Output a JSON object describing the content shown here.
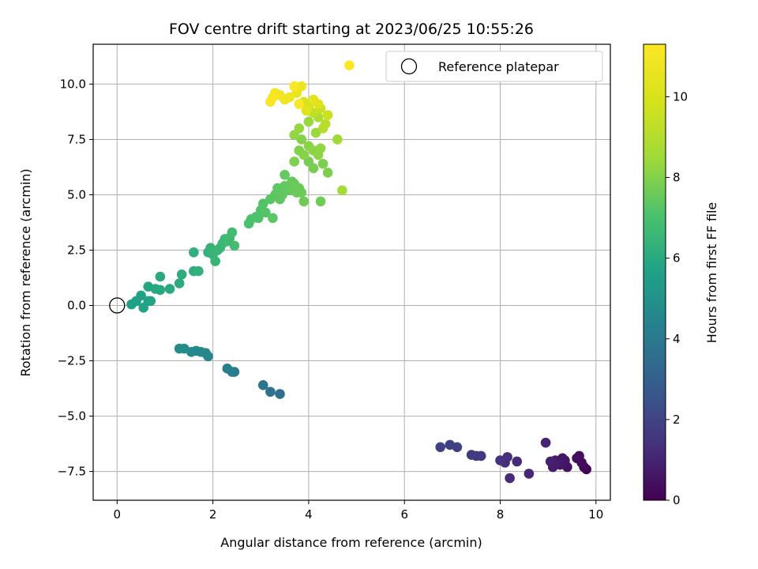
{
  "chart_data": {
    "type": "scatter",
    "title": "FOV centre drift starting at 2023/06/25 10:55:26",
    "xlabel": "Angular distance from reference (arcmin)",
    "ylabel": "Rotation from reference (arcmin)",
    "xlim": [
      -0.5,
      10.3
    ],
    "ylim": [
      -8.8,
      11.8
    ],
    "xticks": [
      0,
      2,
      4,
      6,
      8,
      10
    ],
    "yticks": [
      -7.5,
      -5.0,
      -2.5,
      0.0,
      2.5,
      5.0,
      7.5,
      10.0
    ],
    "grid": true,
    "legend": {
      "placement": "top-right",
      "entries": [
        "Reference platepar"
      ]
    },
    "reference_point": {
      "x": 0,
      "y": 0,
      "label": "Reference platepar"
    },
    "colorbar": {
      "label": "Hours from first FF file",
      "colormap": "viridis",
      "range": [
        0,
        11.3
      ],
      "ticks": [
        0,
        2,
        4,
        6,
        8,
        10
      ]
    },
    "points": [
      [
        9.8,
        -7.4,
        0.1
      ],
      [
        9.75,
        -7.3,
        0.2
      ],
      [
        9.7,
        -7.1,
        0.3
      ],
      [
        9.65,
        -6.8,
        0.35
      ],
      [
        9.6,
        -6.9,
        0.4
      ],
      [
        9.4,
        -7.3,
        0.5
      ],
      [
        9.35,
        -7.0,
        0.55
      ],
      [
        9.3,
        -6.9,
        0.6
      ],
      [
        9.25,
        -7.2,
        0.65
      ],
      [
        9.2,
        -7.1,
        0.7
      ],
      [
        9.15,
        -7.0,
        0.75
      ],
      [
        9.1,
        -7.3,
        0.8
      ],
      [
        9.05,
        -7.05,
        0.9
      ],
      [
        8.95,
        -6.2,
        1.0
      ],
      [
        8.6,
        -7.6,
        1.1
      ],
      [
        8.35,
        -7.05,
        1.2
      ],
      [
        8.2,
        -7.8,
        1.25
      ],
      [
        8.15,
        -6.85,
        1.3
      ],
      [
        8.1,
        -7.1,
        1.35
      ],
      [
        8.0,
        -7.0,
        1.4
      ],
      [
        7.6,
        -6.8,
        1.6
      ],
      [
        7.5,
        -6.8,
        1.65
      ],
      [
        7.4,
        -6.75,
        1.7
      ],
      [
        7.1,
        -6.4,
        1.8
      ],
      [
        6.95,
        -6.3,
        1.85
      ],
      [
        6.75,
        -6.4,
        1.9
      ],
      [
        3.4,
        -4.0,
        3.6
      ],
      [
        3.2,
        -3.9,
        3.7
      ],
      [
        3.05,
        -3.6,
        3.8
      ],
      [
        2.45,
        -3.0,
        4.1
      ],
      [
        2.4,
        -3.0,
        4.15
      ],
      [
        2.3,
        -2.85,
        4.2
      ],
      [
        1.9,
        -2.3,
        4.5
      ],
      [
        1.85,
        -2.15,
        4.55
      ],
      [
        1.75,
        -2.1,
        4.6
      ],
      [
        1.65,
        -2.05,
        4.65
      ],
      [
        1.55,
        -2.1,
        4.7
      ],
      [
        1.4,
        -1.95,
        4.75
      ],
      [
        1.3,
        -1.95,
        4.8
      ],
      [
        0.3,
        0.05,
        5.6
      ],
      [
        0.4,
        0.2,
        5.65
      ],
      [
        0.5,
        0.45,
        5.7
      ],
      [
        0.55,
        -0.1,
        5.72
      ],
      [
        0.65,
        0.2,
        5.75
      ],
      [
        0.7,
        0.2,
        5.8
      ],
      [
        0.65,
        0.85,
        5.85
      ],
      [
        0.8,
        0.75,
        5.9
      ],
      [
        0.9,
        0.7,
        5.95
      ],
      [
        0.9,
        1.3,
        6.0
      ],
      [
        1.1,
        0.75,
        6.05
      ],
      [
        1.3,
        1.0,
        6.1
      ],
      [
        1.35,
        1.4,
        6.15
      ],
      [
        1.6,
        1.55,
        6.2
      ],
      [
        1.6,
        2.4,
        6.25
      ],
      [
        1.7,
        1.55,
        6.3
      ],
      [
        1.9,
        2.4,
        6.35
      ],
      [
        1.95,
        2.6,
        6.4
      ],
      [
        2.0,
        2.3,
        6.45
      ],
      [
        2.05,
        2.0,
        6.5
      ],
      [
        2.1,
        2.5,
        6.52
      ],
      [
        2.15,
        2.6,
        6.55
      ],
      [
        2.2,
        2.8,
        6.6
      ],
      [
        2.25,
        3.0,
        6.65
      ],
      [
        2.3,
        2.9,
        6.7
      ],
      [
        2.35,
        3.05,
        6.75
      ],
      [
        2.4,
        3.3,
        6.8
      ],
      [
        2.45,
        2.7,
        6.85
      ],
      [
        2.75,
        3.7,
        7.0
      ],
      [
        2.8,
        3.9,
        7.05
      ],
      [
        2.9,
        4.0,
        7.1
      ],
      [
        2.95,
        3.95,
        7.12
      ],
      [
        3.0,
        4.3,
        7.15
      ],
      [
        3.05,
        4.6,
        7.2
      ],
      [
        3.1,
        4.2,
        7.25
      ],
      [
        3.2,
        4.8,
        7.3
      ],
      [
        3.25,
        3.95,
        7.32
      ],
      [
        3.3,
        5.0,
        7.35
      ],
      [
        3.35,
        5.3,
        7.38
      ],
      [
        3.4,
        4.8,
        7.4
      ],
      [
        3.45,
        5.0,
        7.42
      ],
      [
        3.5,
        5.4,
        7.45
      ],
      [
        3.5,
        5.9,
        7.48
      ],
      [
        3.6,
        5.2,
        7.5
      ],
      [
        3.65,
        5.6,
        7.52
      ],
      [
        3.7,
        5.5,
        7.55
      ],
      [
        3.75,
        5.1,
        7.58
      ],
      [
        3.8,
        5.3,
        7.6
      ],
      [
        3.85,
        5.1,
        7.62
      ],
      [
        3.9,
        4.7,
        7.65
      ],
      [
        4.25,
        4.7,
        7.7
      ],
      [
        4.0,
        6.5,
        7.75
      ],
      [
        4.1,
        6.2,
        7.8
      ],
      [
        4.3,
        6.4,
        7.85
      ],
      [
        4.4,
        6.0,
        7.9
      ],
      [
        3.7,
        6.5,
        7.92
      ],
      [
        3.8,
        7.0,
        7.95
      ],
      [
        3.85,
        7.5,
        8.0
      ],
      [
        3.9,
        6.8,
        8.05
      ],
      [
        4.0,
        7.2,
        8.1
      ],
      [
        4.1,
        7.0,
        8.15
      ],
      [
        4.2,
        6.8,
        8.2
      ],
      [
        4.25,
        7.1,
        8.22
      ],
      [
        3.7,
        7.7,
        8.25
      ],
      [
        3.8,
        8.0,
        8.3
      ],
      [
        4.0,
        8.3,
        8.35
      ],
      [
        4.15,
        7.8,
        8.4
      ],
      [
        4.6,
        7.5,
        8.5
      ],
      [
        4.7,
        5.2,
        8.6
      ],
      [
        4.2,
        8.5,
        8.8
      ],
      [
        4.3,
        8.0,
        9.0
      ],
      [
        4.35,
        8.2,
        9.1
      ],
      [
        4.1,
        8.7,
        9.3
      ],
      [
        4.25,
        8.9,
        9.5
      ],
      [
        4.4,
        8.6,
        9.6
      ],
      [
        4.0,
        9.0,
        9.8
      ],
      [
        3.9,
        9.2,
        10.0
      ],
      [
        4.2,
        9.1,
        10.2
      ],
      [
        3.95,
        8.8,
        10.3
      ],
      [
        4.1,
        9.3,
        10.4
      ],
      [
        3.75,
        9.6,
        10.6
      ],
      [
        3.85,
        9.9,
        10.7
      ],
      [
        3.6,
        9.4,
        10.8
      ],
      [
        3.5,
        9.3,
        10.85
      ],
      [
        3.4,
        9.5,
        10.9
      ],
      [
        3.3,
        9.6,
        11.0
      ],
      [
        3.2,
        9.2,
        11.05
      ],
      [
        3.25,
        9.4,
        11.1
      ],
      [
        3.7,
        9.9,
        11.15
      ],
      [
        3.8,
        9.1,
        11.2
      ],
      [
        4.85,
        10.85,
        11.3
      ]
    ]
  }
}
